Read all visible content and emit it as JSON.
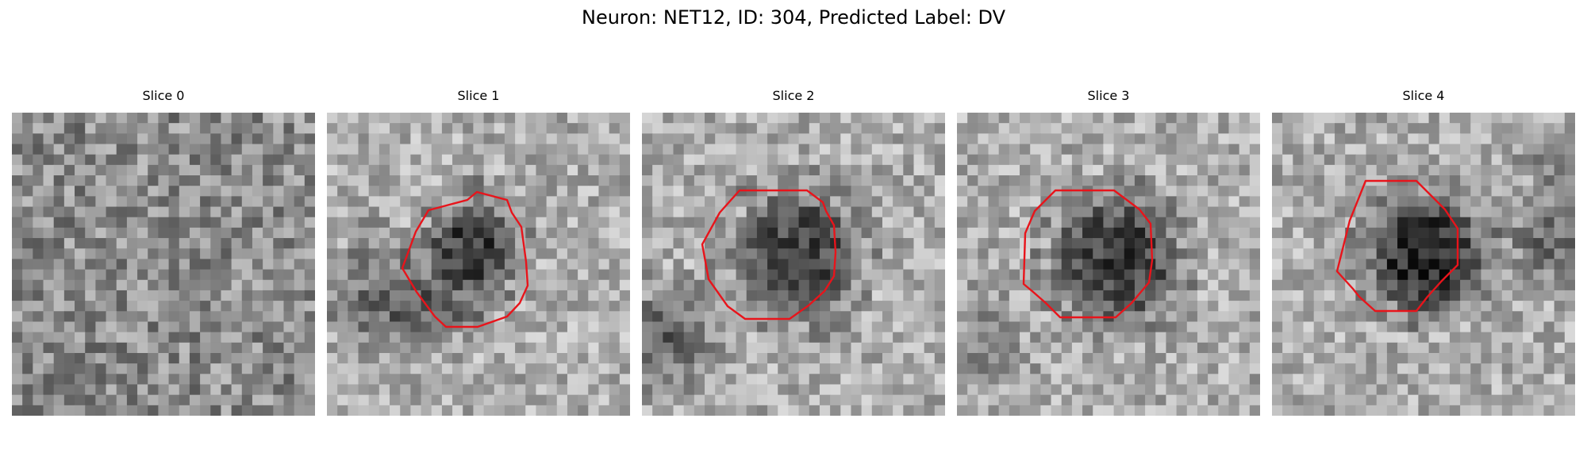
{
  "figure": {
    "title": "Neuron: NET12, ID: 304, Predicted Label: DV"
  },
  "panels": [
    {
      "title": "Slice 0",
      "roi_outline": false
    },
    {
      "title": "Slice 1",
      "roi_outline": true
    },
    {
      "title": "Slice 2",
      "roi_outline": true
    },
    {
      "title": "Slice 3",
      "roi_outline": true
    },
    {
      "title": "Slice 4",
      "roi_outline": true
    }
  ],
  "colors": {
    "roi_outline": "#e8141b",
    "colormap": "grayscale"
  }
}
